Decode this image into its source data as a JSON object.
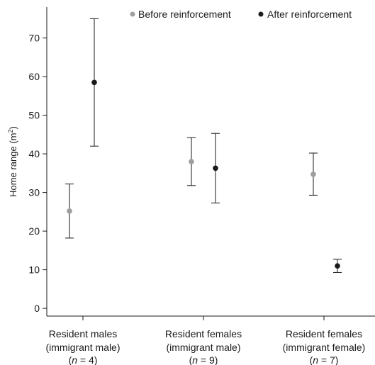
{
  "chart_data": {
    "type": "scatter",
    "subtype": "error-bar-dot-plot",
    "ylabel_prefix": "Home range (m",
    "ylabel_sup": "2",
    "ylabel_suffix": ")",
    "ylim": [
      -2,
      78
    ],
    "yticks": [
      0,
      10,
      20,
      30,
      40,
      50,
      60,
      70
    ],
    "grid": false,
    "legend_position": "top-right",
    "groups": [
      {
        "line1": "Resident males",
        "line2": "(immigrant male)",
        "n_label": "n",
        "n_eq": " = 4)"
      },
      {
        "line1": "Resident females",
        "line2": "(immigrant male)",
        "n_label": "n",
        "n_eq": " = 9)"
      },
      {
        "line1": "Resident females",
        "line2": "(immigrant female)",
        "n_label": "n",
        "n_eq": " = 7)"
      }
    ],
    "series": [
      {
        "name": "Before reinforcement",
        "color": "#9e9e9e",
        "values": [
          25.2,
          38.0,
          34.7
        ],
        "lower": [
          18.2,
          31.8,
          29.3
        ],
        "upper": [
          32.2,
          44.2,
          40.2
        ]
      },
      {
        "name": "After reinforcement",
        "color": "#1a1a1a",
        "values": [
          58.5,
          36.3,
          11.0
        ],
        "lower": [
          42.0,
          27.3,
          9.3
        ],
        "upper": [
          75.0,
          45.3,
          12.7
        ]
      }
    ]
  }
}
